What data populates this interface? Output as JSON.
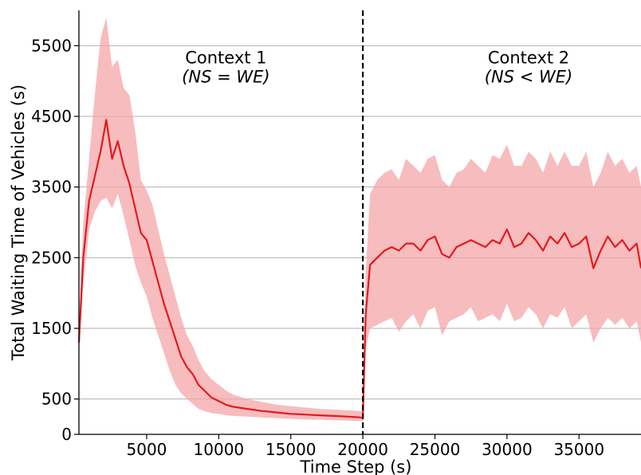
{
  "chart_data": {
    "type": "line",
    "xlabel": "Time Step (s)",
    "ylabel": "Total Waiting Time of Vehicles (s)",
    "xlim": [
      300,
      39300
    ],
    "ylim": [
      0,
      6000
    ],
    "x_ticks": [
      5000,
      10000,
      15000,
      20000,
      25000,
      30000,
      35000
    ],
    "x_tick_labels": [
      "5000",
      "10000",
      "15000",
      "20000",
      "25000",
      "30000",
      "35000"
    ],
    "y_ticks": [
      0,
      500,
      1500,
      2500,
      3500,
      4500,
      5500
    ],
    "y_tick_labels": [
      "0",
      "500",
      "1500",
      "2500",
      "3500",
      "4500",
      "5500"
    ],
    "grid": "horizontal",
    "context_boundary_x": 20000,
    "annotations": [
      {
        "line1": "Context 1",
        "line2": "(NS = WE)",
        "x": 10500,
        "y": 5250
      },
      {
        "line1": "Context 2",
        "line2": "(NS < WE)",
        "x": 31500,
        "y": 5250
      }
    ],
    "colors": {
      "line": "#e31a1c",
      "band": "#f4a6a8",
      "grid": "#b0b0b0",
      "boundary": "#000000"
    },
    "series": [
      {
        "x": [
          300,
          600,
          1000,
          1400,
          1800,
          2200,
          2600,
          3000,
          3400,
          3800,
          4200,
          4600,
          5000,
          5400,
          5800,
          6200,
          6600,
          7000,
          7400,
          7800,
          8200,
          8600,
          9000,
          9500,
          10000,
          10500,
          11000,
          12000,
          13000,
          14000,
          15000,
          16000,
          17000,
          18000,
          19000,
          19800,
          20000,
          20200,
          20500,
          21000,
          21500,
          22000,
          22500,
          23000,
          23500,
          24000,
          24500,
          25000,
          25500,
          26000,
          26500,
          27000,
          27500,
          28000,
          28500,
          29000,
          29500,
          30000,
          30500,
          31000,
          31500,
          32000,
          32500,
          33000,
          33500,
          34000,
          34500,
          35000,
          35500,
          36000,
          36500,
          37000,
          37500,
          38000,
          38500,
          39000,
          39300
        ],
        "values": [
          1300,
          2500,
          3300,
          3650,
          4000,
          4450,
          3900,
          4150,
          3800,
          3550,
          3200,
          2850,
          2750,
          2450,
          2150,
          1850,
          1600,
          1350,
          1100,
          950,
          850,
          700,
          620,
          520,
          470,
          420,
          390,
          360,
          330,
          310,
          290,
          280,
          270,
          260,
          250,
          240,
          230,
          1700,
          2400,
          2500,
          2600,
          2650,
          2600,
          2700,
          2700,
          2600,
          2750,
          2800,
          2550,
          2500,
          2650,
          2700,
          2750,
          2700,
          2650,
          2750,
          2700,
          2900,
          2650,
          2700,
          2850,
          2750,
          2600,
          2800,
          2700,
          2850,
          2650,
          2700,
          2800,
          2350,
          2600,
          2800,
          2650,
          2750,
          2600,
          2700,
          2350
        ],
        "lower": [
          1150,
          2100,
          2900,
          3150,
          3300,
          3350,
          3200,
          3400,
          3100,
          2750,
          2400,
          2150,
          1950,
          1650,
          1400,
          1150,
          900,
          700,
          580,
          500,
          430,
          360,
          330,
          300,
          290,
          270,
          260,
          250,
          240,
          230,
          220,
          210,
          205,
          200,
          195,
          190,
          185,
          1200,
          1500,
          1550,
          1600,
          1650,
          1450,
          1600,
          1700,
          1500,
          1750,
          1800,
          1400,
          1600,
          1650,
          1700,
          1800,
          1600,
          1650,
          1700,
          1600,
          1850,
          1600,
          1650,
          1800,
          1700,
          1500,
          1700,
          1650,
          1800,
          1500,
          1600,
          1700,
          1300,
          1500,
          1650,
          1550,
          1650,
          1500,
          1600,
          1300
        ],
        "upper": [
          1500,
          3000,
          3900,
          4800,
          5600,
          5900,
          5200,
          5300,
          4900,
          4800,
          4300,
          3600,
          3450,
          3250,
          2900,
          2550,
          2250,
          1950,
          1650,
          1400,
          1250,
          1050,
          900,
          780,
          700,
          620,
          560,
          500,
          460,
          420,
          400,
          380,
          360,
          350,
          340,
          330,
          320,
          2300,
          3400,
          3600,
          3700,
          3750,
          3600,
          3900,
          3800,
          3700,
          3900,
          3950,
          3600,
          3500,
          3700,
          3750,
          3900,
          3800,
          3700,
          3950,
          3900,
          4100,
          3800,
          3800,
          4000,
          3900,
          3700,
          4000,
          3800,
          4000,
          3800,
          3800,
          4000,
          3500,
          3700,
          4000,
          3800,
          3900,
          3700,
          3800,
          3500
        ]
      }
    ]
  }
}
